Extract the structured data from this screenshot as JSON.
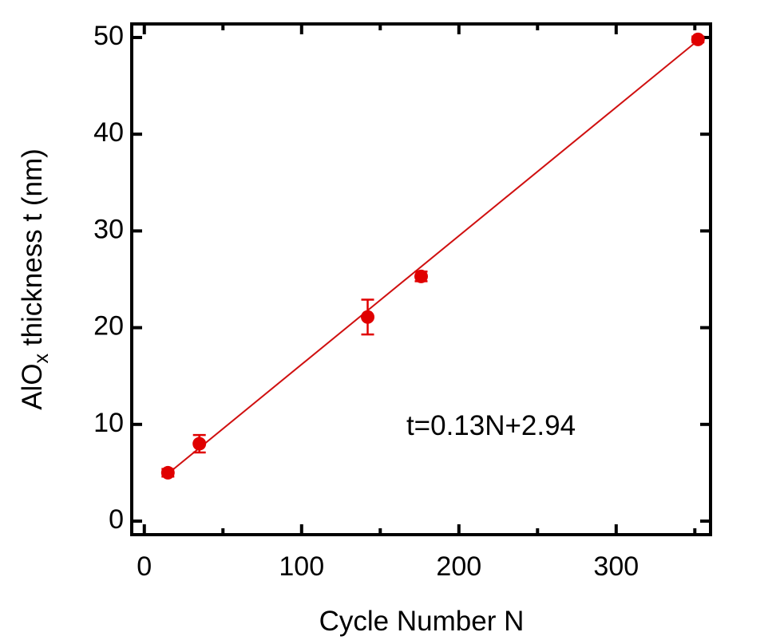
{
  "chart_data": {
    "type": "scatter",
    "xlabel": "Cycle Number N",
    "ylabel": [
      "AlO",
      "x",
      " thickness t (nm)"
    ],
    "annotation": "t=0.13N+2.94",
    "x": [
      15,
      35,
      142,
      176,
      352
    ],
    "series": [
      {
        "color": "#e00000",
        "values": [
          5.0,
          8.0,
          21.1,
          25.3,
          49.8
        ],
        "errors": [
          0.4,
          0.9,
          1.8,
          0.5,
          0.3
        ]
      }
    ],
    "fit": {
      "color": "#d01010",
      "x": [
        15,
        352
      ],
      "values": [
        4.9,
        49.7
      ]
    },
    "xlim": [
      -8,
      360
    ],
    "ylim": [
      -1.4,
      51.4
    ],
    "xticks": [
      0,
      100,
      200,
      300
    ],
    "xminor": [
      50,
      150,
      250,
      350
    ],
    "yticks": [
      0,
      10,
      20,
      30,
      40,
      50
    ]
  }
}
